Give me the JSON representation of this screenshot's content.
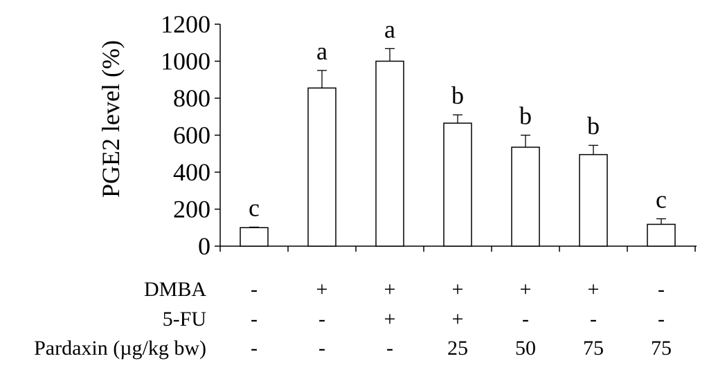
{
  "chart_data": {
    "type": "bar",
    "title": "",
    "xlabel": "",
    "ylabel": "PGE2 level (%)",
    "ylim": [
      0,
      1200
    ],
    "yticks": [
      0,
      200,
      400,
      600,
      800,
      1000,
      1200
    ],
    "grid": false,
    "legend": "none",
    "colors": {
      "bar_fill": "#ffffff",
      "bar_stroke": "#000000",
      "axis": "#000000"
    },
    "values": [
      100,
      855,
      1000,
      665,
      535,
      495,
      118
    ],
    "errors": [
      3,
      95,
      68,
      45,
      65,
      50,
      30
    ],
    "significance": [
      "c",
      "a",
      "a",
      "b",
      "b",
      "b",
      "c"
    ],
    "treatments": [
      {
        "label": "DMBA",
        "values": [
          "-",
          "+",
          "+",
          "+",
          "+",
          "+",
          "-"
        ]
      },
      {
        "label": "5-FU",
        "values": [
          "-",
          "-",
          "+",
          "+",
          "-",
          "-",
          "-"
        ]
      },
      {
        "label": "Pardaxin (µg/kg bw)",
        "values": [
          "-",
          "-",
          "-",
          "25",
          "50",
          "75",
          "75"
        ]
      }
    ]
  }
}
